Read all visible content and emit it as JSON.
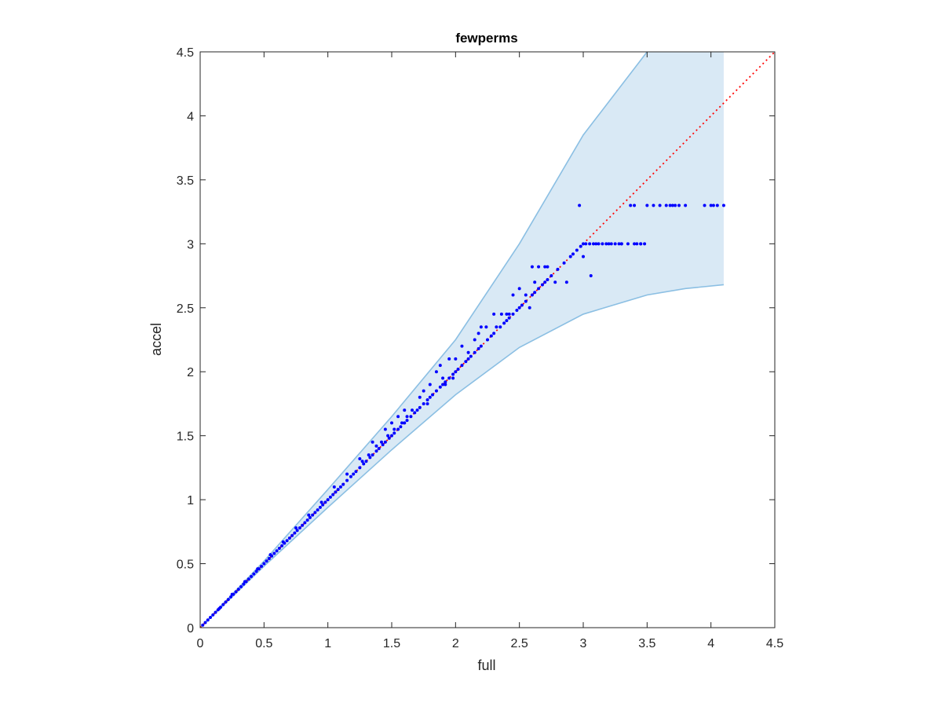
{
  "chart_data": {
    "type": "scatter",
    "title": "fewperms",
    "xlabel": "full",
    "ylabel": "accel",
    "xlim": [
      0,
      4.5
    ],
    "ylim": [
      0,
      4.5
    ],
    "xticks": [
      "0",
      "0.5",
      "1",
      "1.5",
      "2",
      "2.5",
      "3",
      "3.5",
      "4",
      "4.5"
    ],
    "yticks": [
      "0",
      "0.5",
      "1",
      "1.5",
      "2",
      "2.5",
      "3",
      "3.5",
      "4",
      "4.5"
    ],
    "grid": false,
    "colors": {
      "points": "#0000ff",
      "reference_line": "#ff0000",
      "band_fill": "#d9e9f5",
      "band_edge": "#8bbfe3"
    },
    "reference_line": {
      "style": "dotted",
      "x": [
        0,
        4.5
      ],
      "y": [
        0,
        4.5
      ]
    },
    "band": {
      "x": [
        0,
        0.5,
        1.0,
        1.5,
        2.0,
        2.5,
        3.0,
        3.5,
        3.8,
        4.1
      ],
      "upper": [
        0,
        0.52,
        1.08,
        1.65,
        2.25,
        3.0,
        3.85,
        4.5,
        4.5,
        4.5
      ],
      "lower": [
        0,
        0.48,
        0.94,
        1.39,
        1.82,
        2.19,
        2.45,
        2.6,
        2.65,
        2.68
      ]
    },
    "series": [
      {
        "x": [
          0.02,
          0.04,
          0.06,
          0.08,
          0.1,
          0.12,
          0.14,
          0.16,
          0.18,
          0.2,
          0.22,
          0.24,
          0.26,
          0.28,
          0.3,
          0.32,
          0.34,
          0.36,
          0.38,
          0.4,
          0.42,
          0.44,
          0.46,
          0.48,
          0.5,
          0.52,
          0.54,
          0.56,
          0.58,
          0.6,
          0.62,
          0.64,
          0.66,
          0.68,
          0.7,
          0.72,
          0.74,
          0.76,
          0.78,
          0.8,
          0.82,
          0.84,
          0.86,
          0.88,
          0.9,
          0.92,
          0.94,
          0.96,
          0.98,
          1.0,
          1.02,
          1.04,
          1.06,
          1.08,
          1.1,
          1.12,
          1.15,
          1.18,
          1.2,
          1.22,
          1.25,
          1.28,
          1.3,
          1.33,
          1.35,
          1.38,
          1.4,
          1.43,
          1.45,
          1.48,
          1.5,
          1.52,
          1.55,
          1.57,
          1.6,
          1.62,
          1.65,
          1.68,
          1.7,
          1.72,
          1.75,
          1.78,
          1.8,
          1.82,
          1.85,
          1.88,
          1.9,
          1.92,
          1.95,
          1.98,
          2.0,
          2.02,
          2.05,
          2.08,
          2.1,
          2.12,
          2.15,
          2.18,
          2.2,
          2.25,
          2.28,
          2.3,
          2.35,
          2.38,
          2.4,
          2.42,
          2.45,
          2.48,
          2.5,
          2.52,
          2.55,
          2.6,
          2.62,
          2.65,
          2.68,
          2.7,
          2.72,
          2.75,
          2.8,
          2.85,
          2.9,
          2.92,
          2.95,
          2.98,
          3.0,
          3.02,
          3.05,
          3.08,
          3.1,
          3.15,
          3.2,
          3.25,
          3.3,
          3.35,
          3.4,
          3.45,
          3.5,
          3.55,
          3.6,
          3.65,
          3.7,
          3.75,
          3.8,
          3.95,
          4.0,
          4.05,
          4.1,
          2.2,
          2.3,
          2.45,
          2.5,
          1.85,
          1.95,
          1.9,
          2.05,
          2.1,
          2.0,
          1.75,
          1.55,
          1.6,
          1.45,
          1.35,
          1.25,
          1.15,
          1.05,
          0.95,
          0.85,
          0.75,
          0.65,
          0.55,
          0.45,
          0.35,
          0.25,
          0.15,
          1.5,
          1.8,
          2.15,
          2.4,
          2.55,
          2.7,
          2.78,
          2.97,
          3.0,
          3.06,
          3.12,
          3.18,
          3.22,
          3.28,
          3.3,
          3.42,
          3.45,
          3.48,
          3.4,
          3.37,
          3.72,
          3.68,
          4.02,
          2.87,
          2.6,
          2.65,
          2.72,
          2.62,
          2.58,
          2.32,
          2.42,
          2.36,
          2.18,
          2.24,
          1.98,
          1.92,
          1.88,
          1.72,
          1.78,
          1.66,
          1.62,
          1.58,
          1.52,
          1.47,
          1.42,
          1.38,
          1.32,
          1.27
        ],
        "y": [
          0.02,
          0.04,
          0.06,
          0.08,
          0.1,
          0.12,
          0.14,
          0.16,
          0.18,
          0.2,
          0.22,
          0.24,
          0.26,
          0.28,
          0.3,
          0.32,
          0.34,
          0.36,
          0.38,
          0.4,
          0.42,
          0.44,
          0.46,
          0.48,
          0.5,
          0.52,
          0.54,
          0.56,
          0.58,
          0.6,
          0.62,
          0.64,
          0.66,
          0.68,
          0.7,
          0.72,
          0.74,
          0.76,
          0.78,
          0.8,
          0.82,
          0.84,
          0.86,
          0.88,
          0.9,
          0.92,
          0.94,
          0.96,
          0.98,
          1.0,
          1.02,
          1.04,
          1.06,
          1.08,
          1.1,
          1.12,
          1.15,
          1.18,
          1.2,
          1.22,
          1.25,
          1.28,
          1.3,
          1.33,
          1.35,
          1.38,
          1.4,
          1.43,
          1.45,
          1.48,
          1.5,
          1.52,
          1.55,
          1.57,
          1.6,
          1.62,
          1.65,
          1.68,
          1.7,
          1.72,
          1.75,
          1.78,
          1.8,
          1.82,
          1.85,
          1.88,
          1.9,
          1.92,
          1.95,
          1.98,
          2.0,
          2.02,
          2.05,
          2.08,
          2.1,
          2.12,
          2.15,
          2.18,
          2.2,
          2.25,
          2.28,
          2.3,
          2.35,
          2.38,
          2.4,
          2.42,
          2.45,
          2.48,
          2.5,
          2.52,
          2.55,
          2.6,
          2.62,
          2.65,
          2.68,
          2.7,
          2.72,
          2.75,
          2.8,
          2.85,
          2.9,
          2.92,
          2.95,
          2.98,
          3.0,
          3.0,
          3.0,
          3.0,
          3.0,
          3.0,
          3.0,
          3.0,
          3.0,
          3.0,
          3.0,
          3.0,
          3.3,
          3.3,
          3.3,
          3.3,
          3.3,
          3.3,
          3.3,
          3.3,
          3.3,
          3.3,
          3.3,
          2.35,
          2.45,
          2.6,
          2.65,
          2.0,
          2.1,
          1.95,
          2.2,
          2.15,
          2.1,
          1.85,
          1.65,
          1.7,
          1.55,
          1.45,
          1.32,
          1.2,
          1.1,
          0.98,
          0.88,
          0.78,
          0.67,
          0.57,
          0.46,
          0.36,
          0.26,
          0.15,
          1.6,
          1.9,
          2.25,
          2.45,
          2.6,
          2.82,
          2.7,
          3.3,
          2.9,
          2.75,
          3.0,
          3.0,
          3.0,
          3.0,
          3.0,
          3.0,
          3.0,
          3.0,
          3.3,
          3.3,
          3.3,
          3.3,
          3.3,
          2.7,
          2.82,
          2.82,
          2.82,
          2.7,
          2.5,
          2.35,
          2.45,
          2.45,
          2.3,
          2.35,
          1.95,
          1.9,
          2.05,
          1.8,
          1.75,
          1.7,
          1.65,
          1.6,
          1.55,
          1.5,
          1.45,
          1.42,
          1.35,
          1.3
        ]
      }
    ]
  }
}
